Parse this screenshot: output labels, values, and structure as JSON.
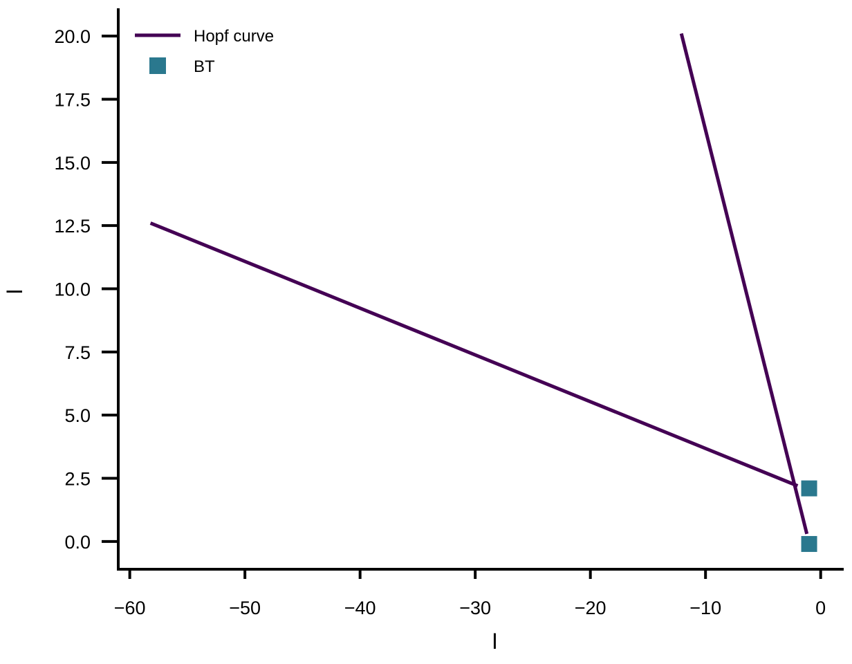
{
  "chart_data": {
    "type": "line",
    "xlabel": "I",
    "ylabel": "I",
    "xlim": [
      -61,
      2
    ],
    "ylim": [
      -1.1,
      21.1
    ],
    "xticks": [
      -60,
      -50,
      -40,
      -30,
      -20,
      -10,
      0
    ],
    "yticks": [
      0.0,
      2.5,
      5.0,
      7.5,
      10.0,
      12.5,
      15.0,
      17.5,
      20.0
    ],
    "grid": false,
    "legend_placement": "top-left",
    "series": [
      {
        "name": "Hopf curve",
        "kind": "line",
        "color": "#440154",
        "segments": [
          [
            [
              -58.2,
              12.6
            ],
            [
              -2.0,
              2.2
            ]
          ],
          [
            [
              -12.1,
              20.1
            ],
            [
              -1.2,
              0.3
            ]
          ]
        ]
      },
      {
        "name": "BT",
        "kind": "scatter",
        "marker": "square",
        "color": "#2a788e",
        "points": [
          [
            -1.0,
            2.1
          ],
          [
            -1.0,
            -0.1
          ]
        ]
      }
    ]
  }
}
